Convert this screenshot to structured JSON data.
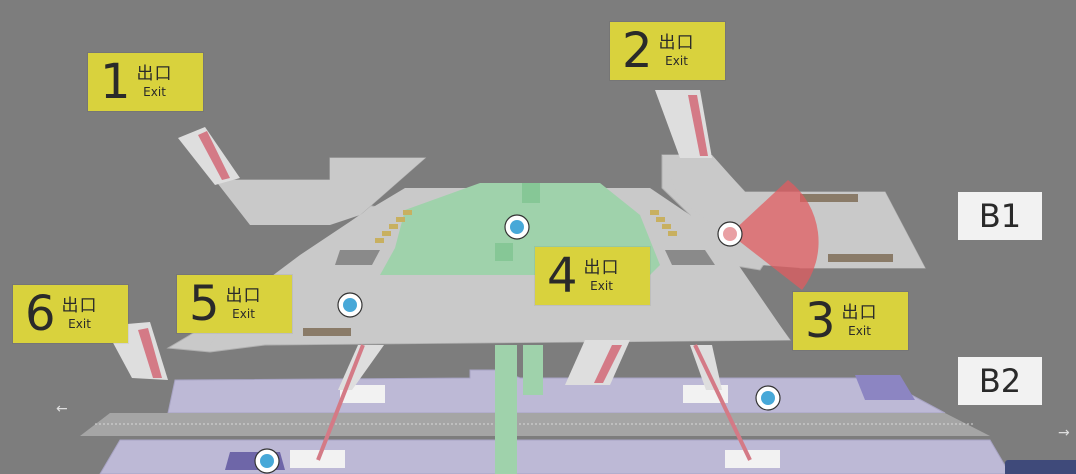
{
  "floors": {
    "b1": "B1",
    "b2": "B2"
  },
  "exits": [
    {
      "number": "1",
      "label_cjk": "出口",
      "label_en": "Exit"
    },
    {
      "number": "2",
      "label_cjk": "出口",
      "label_en": "Exit"
    },
    {
      "number": "3",
      "label_cjk": "出口",
      "label_en": "Exit"
    },
    {
      "number": "4",
      "label_cjk": "出口",
      "label_en": "Exit"
    },
    {
      "number": "5",
      "label_cjk": "出口",
      "label_en": "Exit"
    },
    {
      "number": "6",
      "label_cjk": "出口",
      "label_en": "Exit"
    }
  ],
  "directions": {
    "left_arrow": "←",
    "right_arrow": "→"
  },
  "colors": {
    "background": "#7d7d7d",
    "b1_floor": "#c9c9c9",
    "ticket_area": "#9fd2ab",
    "b2_floor": "#bdb9d6",
    "exit_sign": "#d9d23d",
    "location_pin": "#47a8d8",
    "you_are_here": "#e9a0a4",
    "view_cone": "#e05c60"
  },
  "icons": {
    "elevator": "elevator-icon",
    "location": "location-pin-icon",
    "current_position": "current-position-icon"
  }
}
